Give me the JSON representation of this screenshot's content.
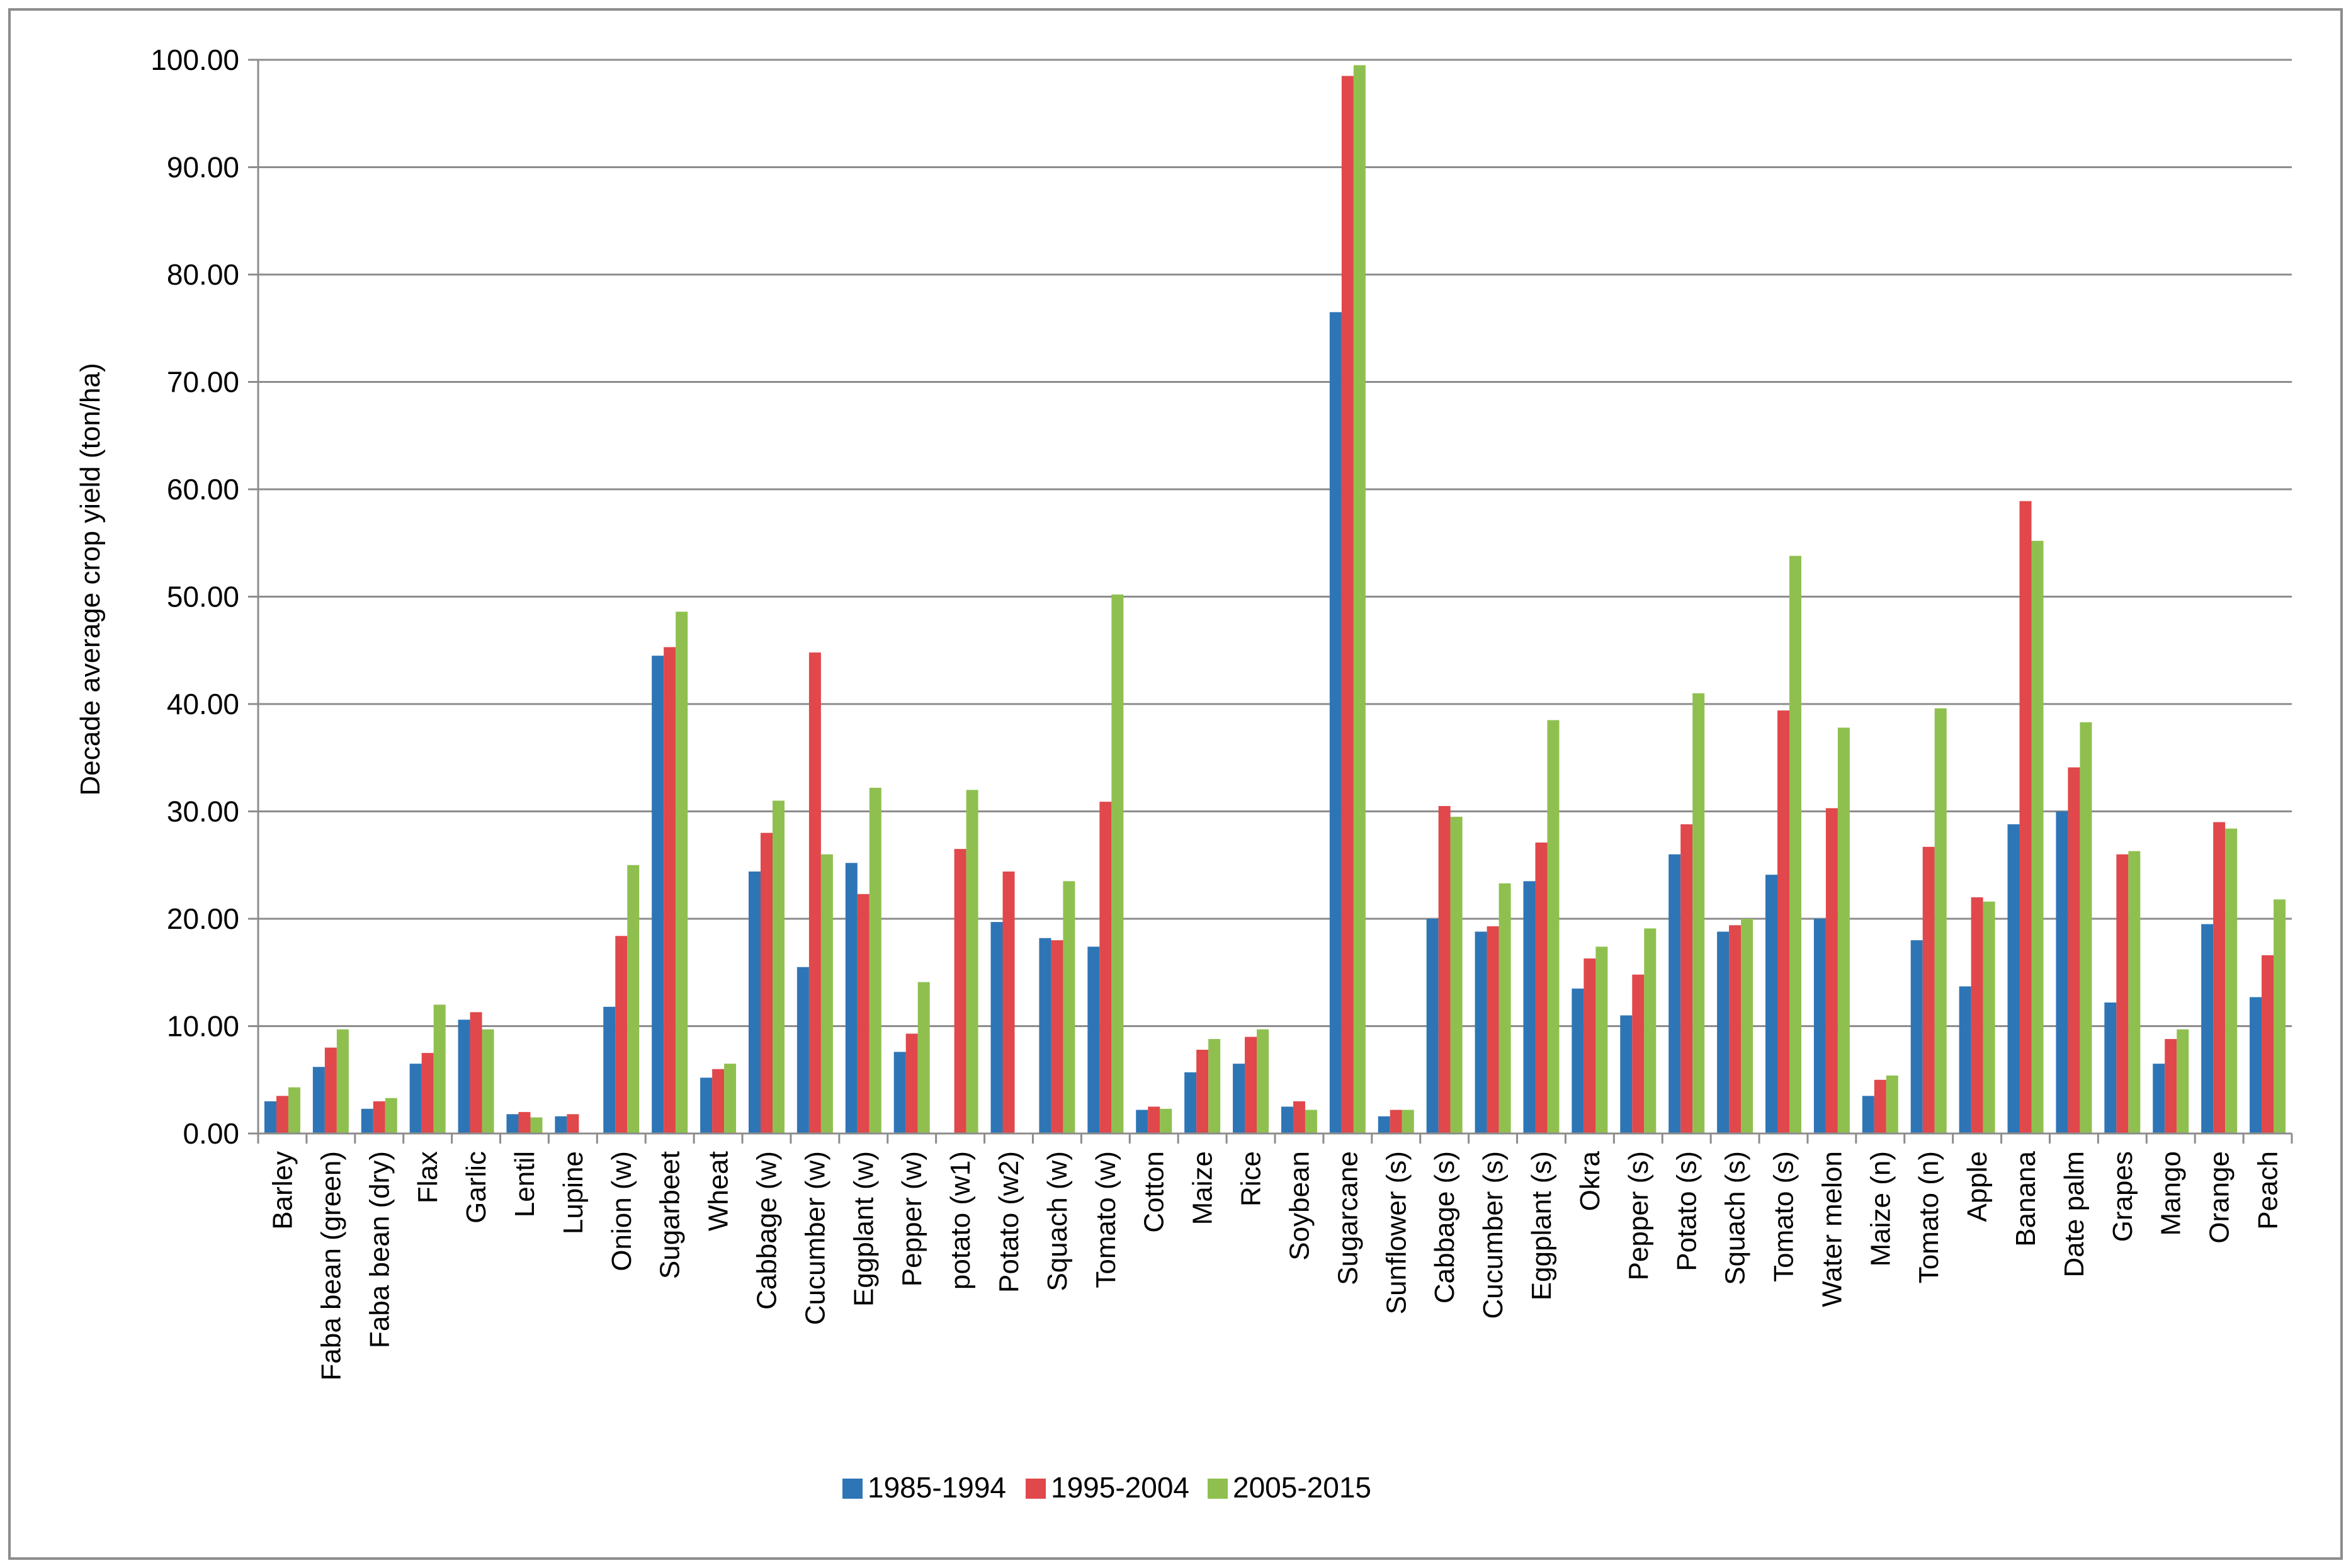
{
  "chart_data": {
    "type": "bar",
    "title": "",
    "xlabel": "",
    "ylabel": "Decade average crop yield (ton/ha)",
    "ylim": [
      0,
      100
    ],
    "y_ticks": [
      "0.00",
      "10.00",
      "20.00",
      "30.00",
      "40.00",
      "50.00",
      "60.00",
      "70.00",
      "80.00",
      "90.00",
      "100.00"
    ],
    "grid": "horizontal",
    "legend_position": "bottom",
    "categories": [
      "Barley",
      "Faba bean (green)",
      "Faba bean (dry)",
      "Flax",
      "Garlic",
      "Lentil",
      "Lupine",
      "Onion (w)",
      "Sugarbeet",
      "Wheat",
      "Cabbage (w)",
      "Cucumber (w)",
      "Eggplant (w)",
      "Pepper (w)",
      "potato (w1)",
      "Potato (w2)",
      "Squach (w)",
      "Tomato (w)",
      "Cotton",
      "Maize",
      "Rice",
      "Soybean",
      "Sugarcane",
      "Sunflower (s)",
      "Cabbage (s)",
      "Cucumber (s)",
      "Eggplant (s)",
      "Okra",
      "Pepper (s)",
      "Potato (s)",
      "Squach (s)",
      "Tomato (s)",
      "Water melon",
      "Maize (n)",
      "Tomato (n)",
      "Apple",
      "Banana",
      "Date palm",
      "Grapes",
      "Mango",
      "Orange",
      "Peach"
    ],
    "series": [
      {
        "name": "1985-1994",
        "color": "#2e75b6",
        "values": [
          3.0,
          6.2,
          2.3,
          6.5,
          10.6,
          1.8,
          1.6,
          11.8,
          44.5,
          5.2,
          24.4,
          15.5,
          25.2,
          7.6,
          0,
          19.7,
          18.2,
          17.4,
          2.2,
          5.7,
          6.5,
          2.5,
          76.5,
          1.6,
          20.0,
          18.8,
          23.5,
          13.5,
          11.0,
          26.0,
          18.8,
          24.1,
          20.0,
          3.5,
          18.0,
          13.7,
          28.8,
          30.0,
          12.2,
          6.5,
          19.5,
          12.7
        ]
      },
      {
        "name": "1995-2004",
        "color": "#e0484b",
        "values": [
          3.5,
          8.0,
          3.0,
          7.5,
          11.3,
          2.0,
          1.8,
          18.4,
          45.3,
          6.0,
          28.0,
          44.8,
          22.3,
          9.3,
          26.5,
          24.4,
          18.0,
          30.9,
          2.5,
          7.8,
          9.0,
          3.0,
          98.5,
          2.2,
          30.5,
          19.3,
          27.1,
          16.3,
          14.8,
          28.8,
          19.4,
          39.4,
          30.3,
          5.0,
          26.7,
          22.0,
          58.9,
          34.1,
          26.0,
          8.8,
          29.0,
          16.6
        ]
      },
      {
        "name": "2005-2015",
        "color": "#8fc04f",
        "values": [
          4.3,
          9.7,
          3.3,
          12.0,
          9.7,
          1.5,
          0,
          25.0,
          48.6,
          6.5,
          31.0,
          26.0,
          32.2,
          14.1,
          32.0,
          0,
          23.5,
          50.2,
          2.3,
          8.8,
          9.7,
          2.2,
          99.5,
          2.2,
          29.5,
          23.3,
          38.5,
          17.4,
          19.1,
          41.0,
          20.0,
          53.8,
          37.8,
          5.4,
          39.6,
          21.6,
          55.2,
          38.3,
          26.3,
          9.7,
          28.4,
          21.8
        ]
      }
    ]
  }
}
